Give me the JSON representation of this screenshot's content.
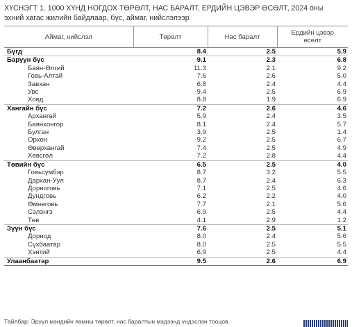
{
  "title_line1": "ХҮСНЭГТ 1.   1000 ХҮНД НОГДОХ ТӨРӨЛТ, НАС БАРАЛТ, ЕРДИЙН ЦЭВЭР ӨСӨЛТ, 2024 оны",
  "title_line2": "эхний хагас жилийн байдлаар, бүс, аймаг, нийслэлээр",
  "headers": {
    "col1": "Аймаг, нийслэл",
    "col2": "Төрөлт",
    "col3": "Нас баралт",
    "col4_line1": "Ердийн цэвэр",
    "col4_line2": "өсөлт"
  },
  "rows": [
    {
      "name": "Бүгд",
      "birth": "8.4",
      "death": "2.5",
      "growth": "5.9"
    },
    {
      "name": "Баруун бүс",
      "birth": "9.1",
      "death": "2.3",
      "growth": "6.8"
    },
    {
      "name": "Баян-Өлгий",
      "birth": "11.3",
      "death": "2.1",
      "growth": "9.2"
    },
    {
      "name": "Говь-Алтай",
      "birth": "7.6",
      "death": "2.6",
      "growth": "5.0"
    },
    {
      "name": "Завхан",
      "birth": "6.8",
      "death": "2.4",
      "growth": "4.4"
    },
    {
      "name": "Увс",
      "birth": "9.4",
      "death": "2.5",
      "growth": "6.9"
    },
    {
      "name": "Ховд",
      "birth": "8.8",
      "death": "1.9",
      "growth": "6.9"
    },
    {
      "name": "Хангайн бүс",
      "birth": "7.2",
      "death": "2.6",
      "growth": "4.6"
    },
    {
      "name": "Архангай",
      "birth": "5.9",
      "death": "2.4",
      "growth": "3.5"
    },
    {
      "name": "Баянхонгор",
      "birth": "8.1",
      "death": "2.4",
      "growth": "5.7"
    },
    {
      "name": "Булган",
      "birth": "3.9",
      "death": "2.5",
      "growth": "1.4"
    },
    {
      "name": "Орхон",
      "birth": "9.2",
      "death": "2.5",
      "growth": "6.7"
    },
    {
      "name": "Өвөрхангай",
      "birth": "7.4",
      "death": "2.5",
      "growth": "4.9"
    },
    {
      "name": "Хөвсгөл",
      "birth": "7.2",
      "death": "2.8",
      "growth": "4.4"
    },
    {
      "name": "Төвийн бүс",
      "birth": "6.5",
      "death": "2.5",
      "growth": "4.0"
    },
    {
      "name": "Говьсүмбэр",
      "birth": "8.7",
      "death": "3.2",
      "growth": "5.5"
    },
    {
      "name": "Дархан-Уул",
      "birth": "8.7",
      "death": "2.4",
      "growth": "6.3"
    },
    {
      "name": "Дорноговь",
      "birth": "7.1",
      "death": "2.5",
      "growth": "4.6"
    },
    {
      "name": "Дундговь",
      "birth": "6.2",
      "death": "2.2",
      "growth": "4.0"
    },
    {
      "name": "Өмнөговь",
      "birth": "7.7",
      "death": "2.1",
      "growth": "5.6"
    },
    {
      "name": "Сэлэнгэ",
      "birth": "6.9",
      "death": "2.5",
      "growth": "4.4"
    },
    {
      "name": "Төв",
      "birth": "4.1",
      "death": "2.9",
      "growth": "1.2"
    },
    {
      "name": "Зүүн бүс",
      "birth": "7.6",
      "death": "2.5",
      "growth": "5.1"
    },
    {
      "name": "Дорнод",
      "birth": "8.0",
      "death": "2.4",
      "growth": "5.6"
    },
    {
      "name": "Сүхбаатар",
      "birth": "8.0",
      "death": "2.5",
      "growth": "5.5"
    },
    {
      "name": "Хэнтий",
      "birth": "6.9",
      "death": "2.5",
      "growth": "4.4"
    },
    {
      "name": "Улаанбаатар",
      "birth": "9.5",
      "death": "2.6",
      "growth": "6.9"
    }
  ],
  "source": "Тайлбар:  Эрүүл мэндийн яамны төрөлт, нас баралтын мэдээнд үндэслэн тооцов."
}
